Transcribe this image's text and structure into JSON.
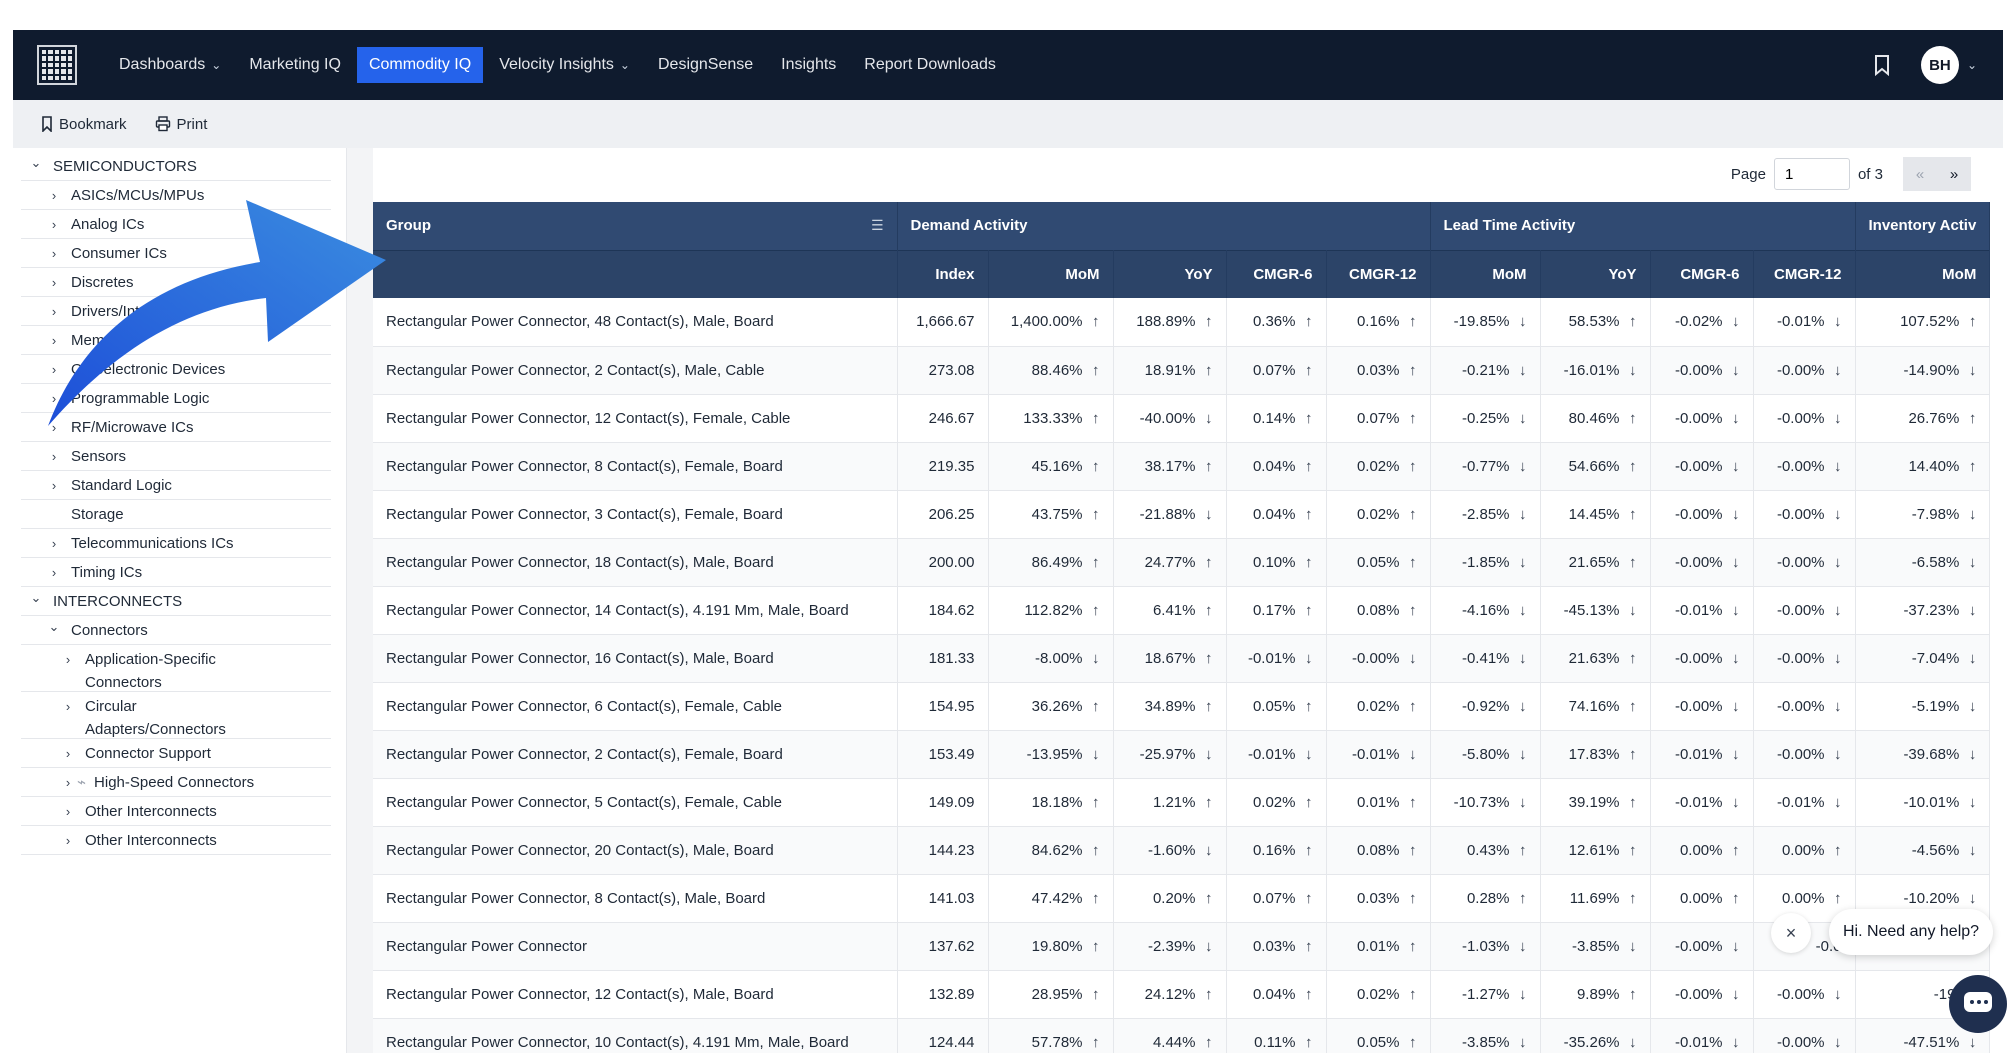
{
  "nav": {
    "items": [
      {
        "label": "Dashboards",
        "has_dropdown": true,
        "active": false
      },
      {
        "label": "Marketing IQ",
        "has_dropdown": false,
        "active": false
      },
      {
        "label": "Commodity IQ",
        "has_dropdown": false,
        "active": true
      },
      {
        "label": "Velocity Insights",
        "has_dropdown": true,
        "active": false
      },
      {
        "label": "DesignSense",
        "has_dropdown": false,
        "active": false
      },
      {
        "label": "Insights",
        "has_dropdown": false,
        "active": false
      },
      {
        "label": "Report Downloads",
        "has_dropdown": false,
        "active": false
      }
    ],
    "avatar_initials": "BH",
    "accent_color": "#2563eb",
    "bar_color": "#0f1b2e"
  },
  "toolbar": {
    "bookmark_label": "Bookmark",
    "print_label": "Print"
  },
  "sidebar": {
    "items": [
      {
        "label": "SEMICONDUCTORS",
        "level": 0,
        "icon": "chevron-down-icon"
      },
      {
        "label": "ASICs/MCUs/MPUs",
        "level": 1,
        "icon": "chevron-right-icon"
      },
      {
        "label": "Analog ICs",
        "level": 1,
        "icon": "chevron-right-icon"
      },
      {
        "label": "Consumer ICs",
        "level": 1,
        "icon": "chevron-right-icon"
      },
      {
        "label": "Discretes",
        "level": 1,
        "icon": "chevron-right-icon"
      },
      {
        "label": "Drivers/Interfaces",
        "level": 1,
        "icon": "chevron-right-icon"
      },
      {
        "label": "Memory",
        "level": 1,
        "icon": "chevron-right-icon"
      },
      {
        "label": "Optoelectronic Devices",
        "level": 1,
        "icon": "chevron-right-icon"
      },
      {
        "label": "Programmable Logic",
        "level": 1,
        "icon": "chevron-right-icon"
      },
      {
        "label": "RF/Microwave ICs",
        "level": 1,
        "icon": "chevron-right-icon"
      },
      {
        "label": "Sensors",
        "level": 1,
        "icon": "chevron-right-icon"
      },
      {
        "label": "Standard Logic",
        "level": 1,
        "icon": "chevron-right-icon"
      },
      {
        "label": "Storage",
        "level": 1,
        "icon": ""
      },
      {
        "label": "Telecommunications ICs",
        "level": 1,
        "icon": "chevron-right-icon"
      },
      {
        "label": "Timing ICs",
        "level": 1,
        "icon": "chevron-right-icon"
      },
      {
        "label": "INTERCONNECTS",
        "level": 0,
        "icon": "chevron-down-icon"
      },
      {
        "label": "Connectors",
        "level": 1,
        "icon": "chevron-down-icon"
      },
      {
        "label": "Application-Specific Connectors",
        "level": 2,
        "icon": "chevron-right-icon"
      },
      {
        "label": "Circular Adapters/Connectors",
        "level": 2,
        "icon": "chevron-right-icon"
      },
      {
        "label": "Connector Support",
        "level": 2,
        "icon": "chevron-right-icon"
      },
      {
        "label": "High-Speed Connectors",
        "level": 2,
        "icon": "chevron-right-icon",
        "badge_icon": "loading-icon"
      },
      {
        "label": "Other Interconnects",
        "level": 2,
        "icon": "chevron-right-icon"
      },
      {
        "label": "Other Interconnects",
        "level": 2,
        "icon": "chevron-right-icon"
      }
    ]
  },
  "pager": {
    "label": "Page",
    "current": "1",
    "of_label": "of 3",
    "prev": "«",
    "next": "»"
  },
  "table": {
    "group_header": "Group",
    "sections": [
      {
        "label": "Demand Activity"
      },
      {
        "label": "Lead Time Activity"
      },
      {
        "label": "Inventory Activ"
      }
    ],
    "sub_headers": [
      "Index",
      "MoM",
      "YoY",
      "CMGR-6",
      "CMGR-12",
      "MoM",
      "YoY",
      "CMGR-6",
      "CMGR-12",
      "MoM"
    ],
    "rows": [
      {
        "name": "Rectangular Power Connector, 48 Contact(s), Male, Board",
        "cells": [
          "1,666.67",
          "1,400.00%",
          "188.89%",
          "0.36%",
          "0.16%",
          "-19.85%",
          "58.53%",
          "-0.02%",
          "-0.01%",
          "107.52%"
        ],
        "dirs": [
          "",
          "up",
          "up",
          "up",
          "up",
          "down",
          "up",
          "down",
          "down",
          "up"
        ]
      },
      {
        "name": "Rectangular Power Connector, 2 Contact(s), Male, Cable",
        "cells": [
          "273.08",
          "88.46%",
          "18.91%",
          "0.07%",
          "0.03%",
          "-0.21%",
          "-16.01%",
          "-0.00%",
          "-0.00%",
          "-14.90%"
        ],
        "dirs": [
          "",
          "up",
          "up",
          "up",
          "up",
          "down",
          "down",
          "down",
          "down",
          "down"
        ]
      },
      {
        "name": "Rectangular Power Connector, 12 Contact(s), Female, Cable",
        "cells": [
          "246.67",
          "133.33%",
          "-40.00%",
          "0.14%",
          "0.07%",
          "-0.25%",
          "80.46%",
          "-0.00%",
          "-0.00%",
          "26.76%"
        ],
        "dirs": [
          "",
          "up",
          "down",
          "up",
          "up",
          "down",
          "up",
          "down",
          "down",
          "up"
        ]
      },
      {
        "name": "Rectangular Power Connector, 8 Contact(s), Female, Board",
        "cells": [
          "219.35",
          "45.16%",
          "38.17%",
          "0.04%",
          "0.02%",
          "-0.77%",
          "54.66%",
          "-0.00%",
          "-0.00%",
          "14.40%"
        ],
        "dirs": [
          "",
          "up",
          "up",
          "up",
          "up",
          "down",
          "up",
          "down",
          "down",
          "up"
        ]
      },
      {
        "name": "Rectangular Power Connector, 3 Contact(s), Female, Board",
        "cells": [
          "206.25",
          "43.75%",
          "-21.88%",
          "0.04%",
          "0.02%",
          "-2.85%",
          "14.45%",
          "-0.00%",
          "-0.00%",
          "-7.98%"
        ],
        "dirs": [
          "",
          "up",
          "down",
          "up",
          "up",
          "down",
          "up",
          "down",
          "down",
          "down"
        ]
      },
      {
        "name": "Rectangular Power Connector, 18 Contact(s), Male, Board",
        "cells": [
          "200.00",
          "86.49%",
          "24.77%",
          "0.10%",
          "0.05%",
          "-1.85%",
          "21.65%",
          "-0.00%",
          "-0.00%",
          "-6.58%"
        ],
        "dirs": [
          "",
          "up",
          "up",
          "up",
          "up",
          "down",
          "up",
          "down",
          "down",
          "down"
        ]
      },
      {
        "name": "Rectangular Power Connector, 14 Contact(s), 4.191 Mm, Male, Board",
        "cells": [
          "184.62",
          "112.82%",
          "6.41%",
          "0.17%",
          "0.08%",
          "-4.16%",
          "-45.13%",
          "-0.01%",
          "-0.00%",
          "-37.23%"
        ],
        "dirs": [
          "",
          "up",
          "up",
          "up",
          "up",
          "down",
          "down",
          "down",
          "down",
          "down"
        ]
      },
      {
        "name": "Rectangular Power Connector, 16 Contact(s), Male, Board",
        "cells": [
          "181.33",
          "-8.00%",
          "18.67%",
          "-0.01%",
          "-0.00%",
          "-0.41%",
          "21.63%",
          "-0.00%",
          "-0.00%",
          "-7.04%"
        ],
        "dirs": [
          "",
          "down",
          "up",
          "down",
          "down",
          "down",
          "up",
          "down",
          "down",
          "down"
        ]
      },
      {
        "name": "Rectangular Power Connector, 6 Contact(s), Female, Cable",
        "cells": [
          "154.95",
          "36.26%",
          "34.89%",
          "0.05%",
          "0.02%",
          "-0.92%",
          "74.16%",
          "-0.00%",
          "-0.00%",
          "-5.19%"
        ],
        "dirs": [
          "",
          "up",
          "up",
          "up",
          "up",
          "down",
          "up",
          "down",
          "down",
          "down"
        ]
      },
      {
        "name": "Rectangular Power Connector, 2 Contact(s), Female, Board",
        "cells": [
          "153.49",
          "-13.95%",
          "-25.97%",
          "-0.01%",
          "-0.01%",
          "-5.80%",
          "17.83%",
          "-0.01%",
          "-0.00%",
          "-39.68%"
        ],
        "dirs": [
          "",
          "down",
          "down",
          "down",
          "down",
          "down",
          "up",
          "down",
          "down",
          "down"
        ]
      },
      {
        "name": "Rectangular Power Connector, 5 Contact(s), Female, Cable",
        "cells": [
          "149.09",
          "18.18%",
          "1.21%",
          "0.02%",
          "0.01%",
          "-10.73%",
          "39.19%",
          "-0.01%",
          "-0.01%",
          "-10.01%"
        ],
        "dirs": [
          "",
          "up",
          "up",
          "up",
          "up",
          "down",
          "up",
          "down",
          "down",
          "down"
        ]
      },
      {
        "name": "Rectangular Power Connector, 20 Contact(s), Male, Board",
        "cells": [
          "144.23",
          "84.62%",
          "-1.60%",
          "0.16%",
          "0.08%",
          "0.43%",
          "12.61%",
          "0.00%",
          "0.00%",
          "-4.56%"
        ],
        "dirs": [
          "",
          "up",
          "down",
          "up",
          "up",
          "up",
          "up",
          "up",
          "up",
          "down"
        ]
      },
      {
        "name": "Rectangular Power Connector, 8 Contact(s), Male, Board",
        "cells": [
          "141.03",
          "47.42%",
          "0.20%",
          "0.07%",
          "0.03%",
          "0.28%",
          "11.69%",
          "0.00%",
          "0.00%",
          "-10.20%"
        ],
        "dirs": [
          "",
          "up",
          "up",
          "up",
          "up",
          "up",
          "up",
          "up",
          "up",
          "down"
        ]
      },
      {
        "name": "Rectangular Power Connector",
        "cells": [
          "137.62",
          "19.80%",
          "-2.39%",
          "0.03%",
          "0.01%",
          "-1.03%",
          "-3.85%",
          "-0.00%",
          "-0.0",
          "",
          ""
        ],
        "dirs": [
          "",
          "up",
          "down",
          "up",
          "up",
          "down",
          "down",
          "down",
          "",
          ""
        ]
      },
      {
        "name": "Rectangular Power Connector, 12 Contact(s), Male, Board",
        "cells": [
          "132.89",
          "28.95%",
          "24.12%",
          "0.04%",
          "0.02%",
          "-1.27%",
          "9.89%",
          "-0.00%",
          "-0.00%",
          "-19.83"
        ],
        "dirs": [
          "",
          "up",
          "up",
          "up",
          "up",
          "down",
          "up",
          "down",
          "down",
          ""
        ]
      },
      {
        "name": "Rectangular Power Connector, 10 Contact(s), 4.191 Mm, Male, Board",
        "cells": [
          "124.44",
          "57.78%",
          "4.44%",
          "0.11%",
          "0.05%",
          "-3.85%",
          "-35.26%",
          "-0.01%",
          "-0.00%",
          "-47.51%"
        ],
        "dirs": [
          "",
          "up",
          "up",
          "up",
          "up",
          "down",
          "down",
          "down",
          "down",
          "down"
        ]
      }
    ]
  },
  "chat": {
    "prompt": "Hi. Need any help?",
    "close": "×"
  }
}
